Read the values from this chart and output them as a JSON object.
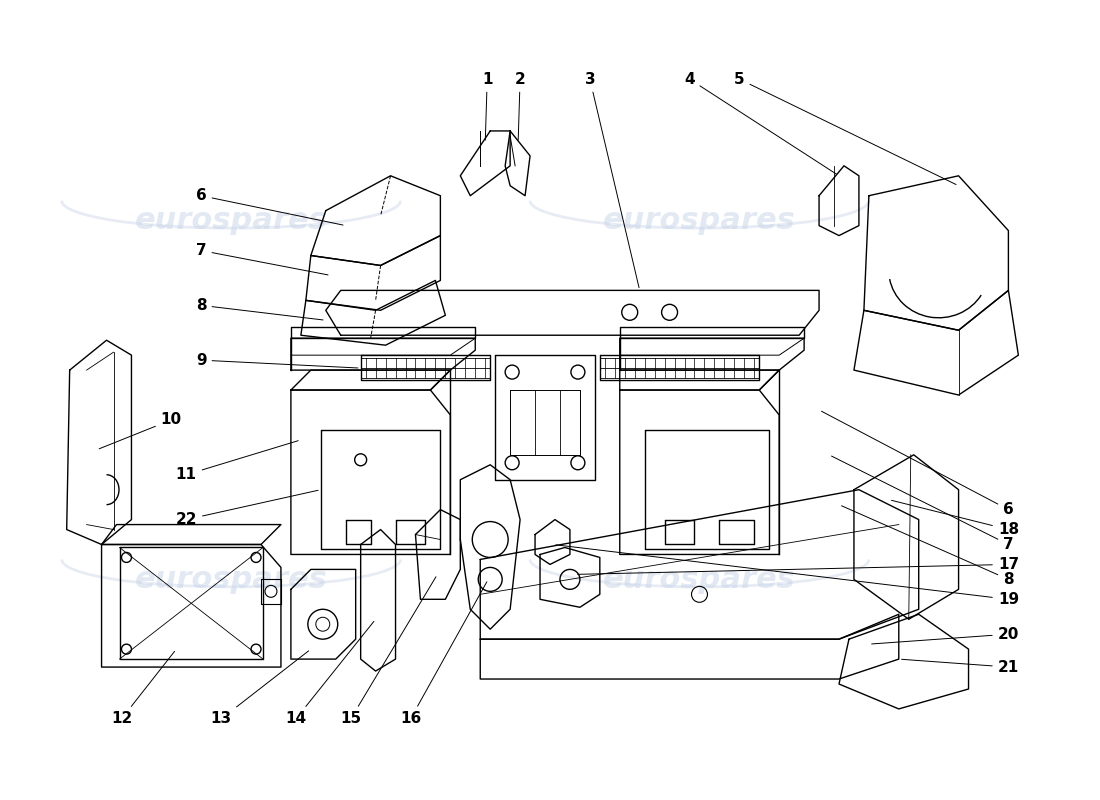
{
  "background_color": "#ffffff",
  "line_color": "#000000",
  "watermark_color": "#c8d4e8",
  "watermark_text": "eurospares",
  "lw": 1.0
}
